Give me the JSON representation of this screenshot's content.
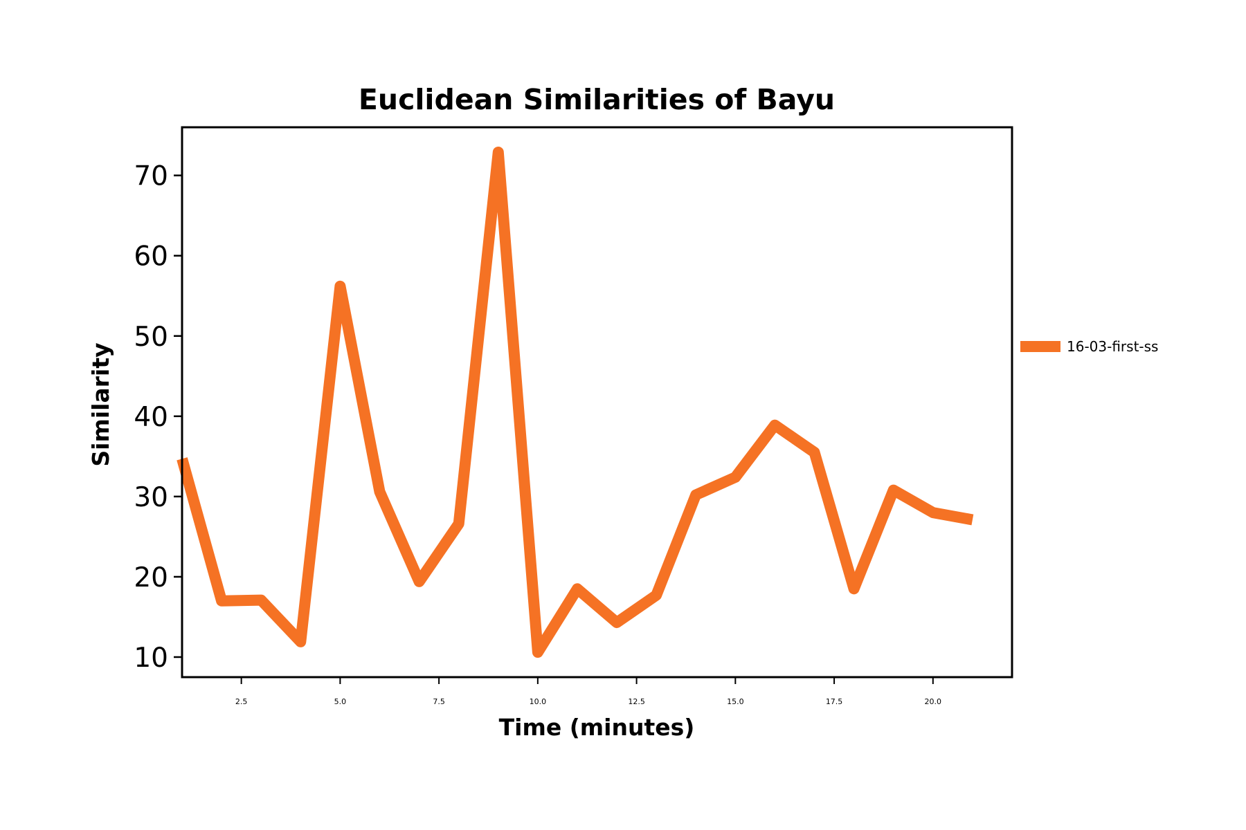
{
  "chart_data": {
    "type": "line",
    "title": "Euclidean Similarities of Bayu",
    "xlabel": "Time (minutes)",
    "ylabel": "Similarity",
    "xlim": [
      1.0,
      22.0
    ],
    "ylim": [
      7.5,
      76.0
    ],
    "xticks": [
      2.5,
      5.0,
      7.5,
      10.0,
      12.5,
      15.0,
      17.5,
      20.0
    ],
    "xtick_labels": [
      "2.5",
      "5.0",
      "7.5",
      "10.0",
      "12.5",
      "15.0",
      "17.5",
      "20.0"
    ],
    "yticks": [
      10,
      20,
      30,
      40,
      50,
      60,
      70
    ],
    "ytick_labels": [
      "10",
      "20",
      "30",
      "40",
      "50",
      "60",
      "70"
    ],
    "grid": false,
    "legend_position": "center-right-outside",
    "series": [
      {
        "name": "16-03-first-ss",
        "color": "#f57224",
        "x": [
          1,
          2,
          3,
          4,
          5,
          6,
          7,
          8,
          9,
          10,
          11,
          12,
          13,
          14,
          15,
          16,
          17,
          18,
          19,
          20,
          21
        ],
        "y": [
          34.7,
          17.0,
          17.1,
          11.9,
          56.2,
          30.6,
          19.4,
          26.6,
          72.9,
          10.6,
          18.5,
          14.3,
          17.7,
          30.2,
          32.4,
          38.9,
          35.5,
          18.5,
          30.8,
          28.0,
          27.1
        ]
      }
    ]
  }
}
